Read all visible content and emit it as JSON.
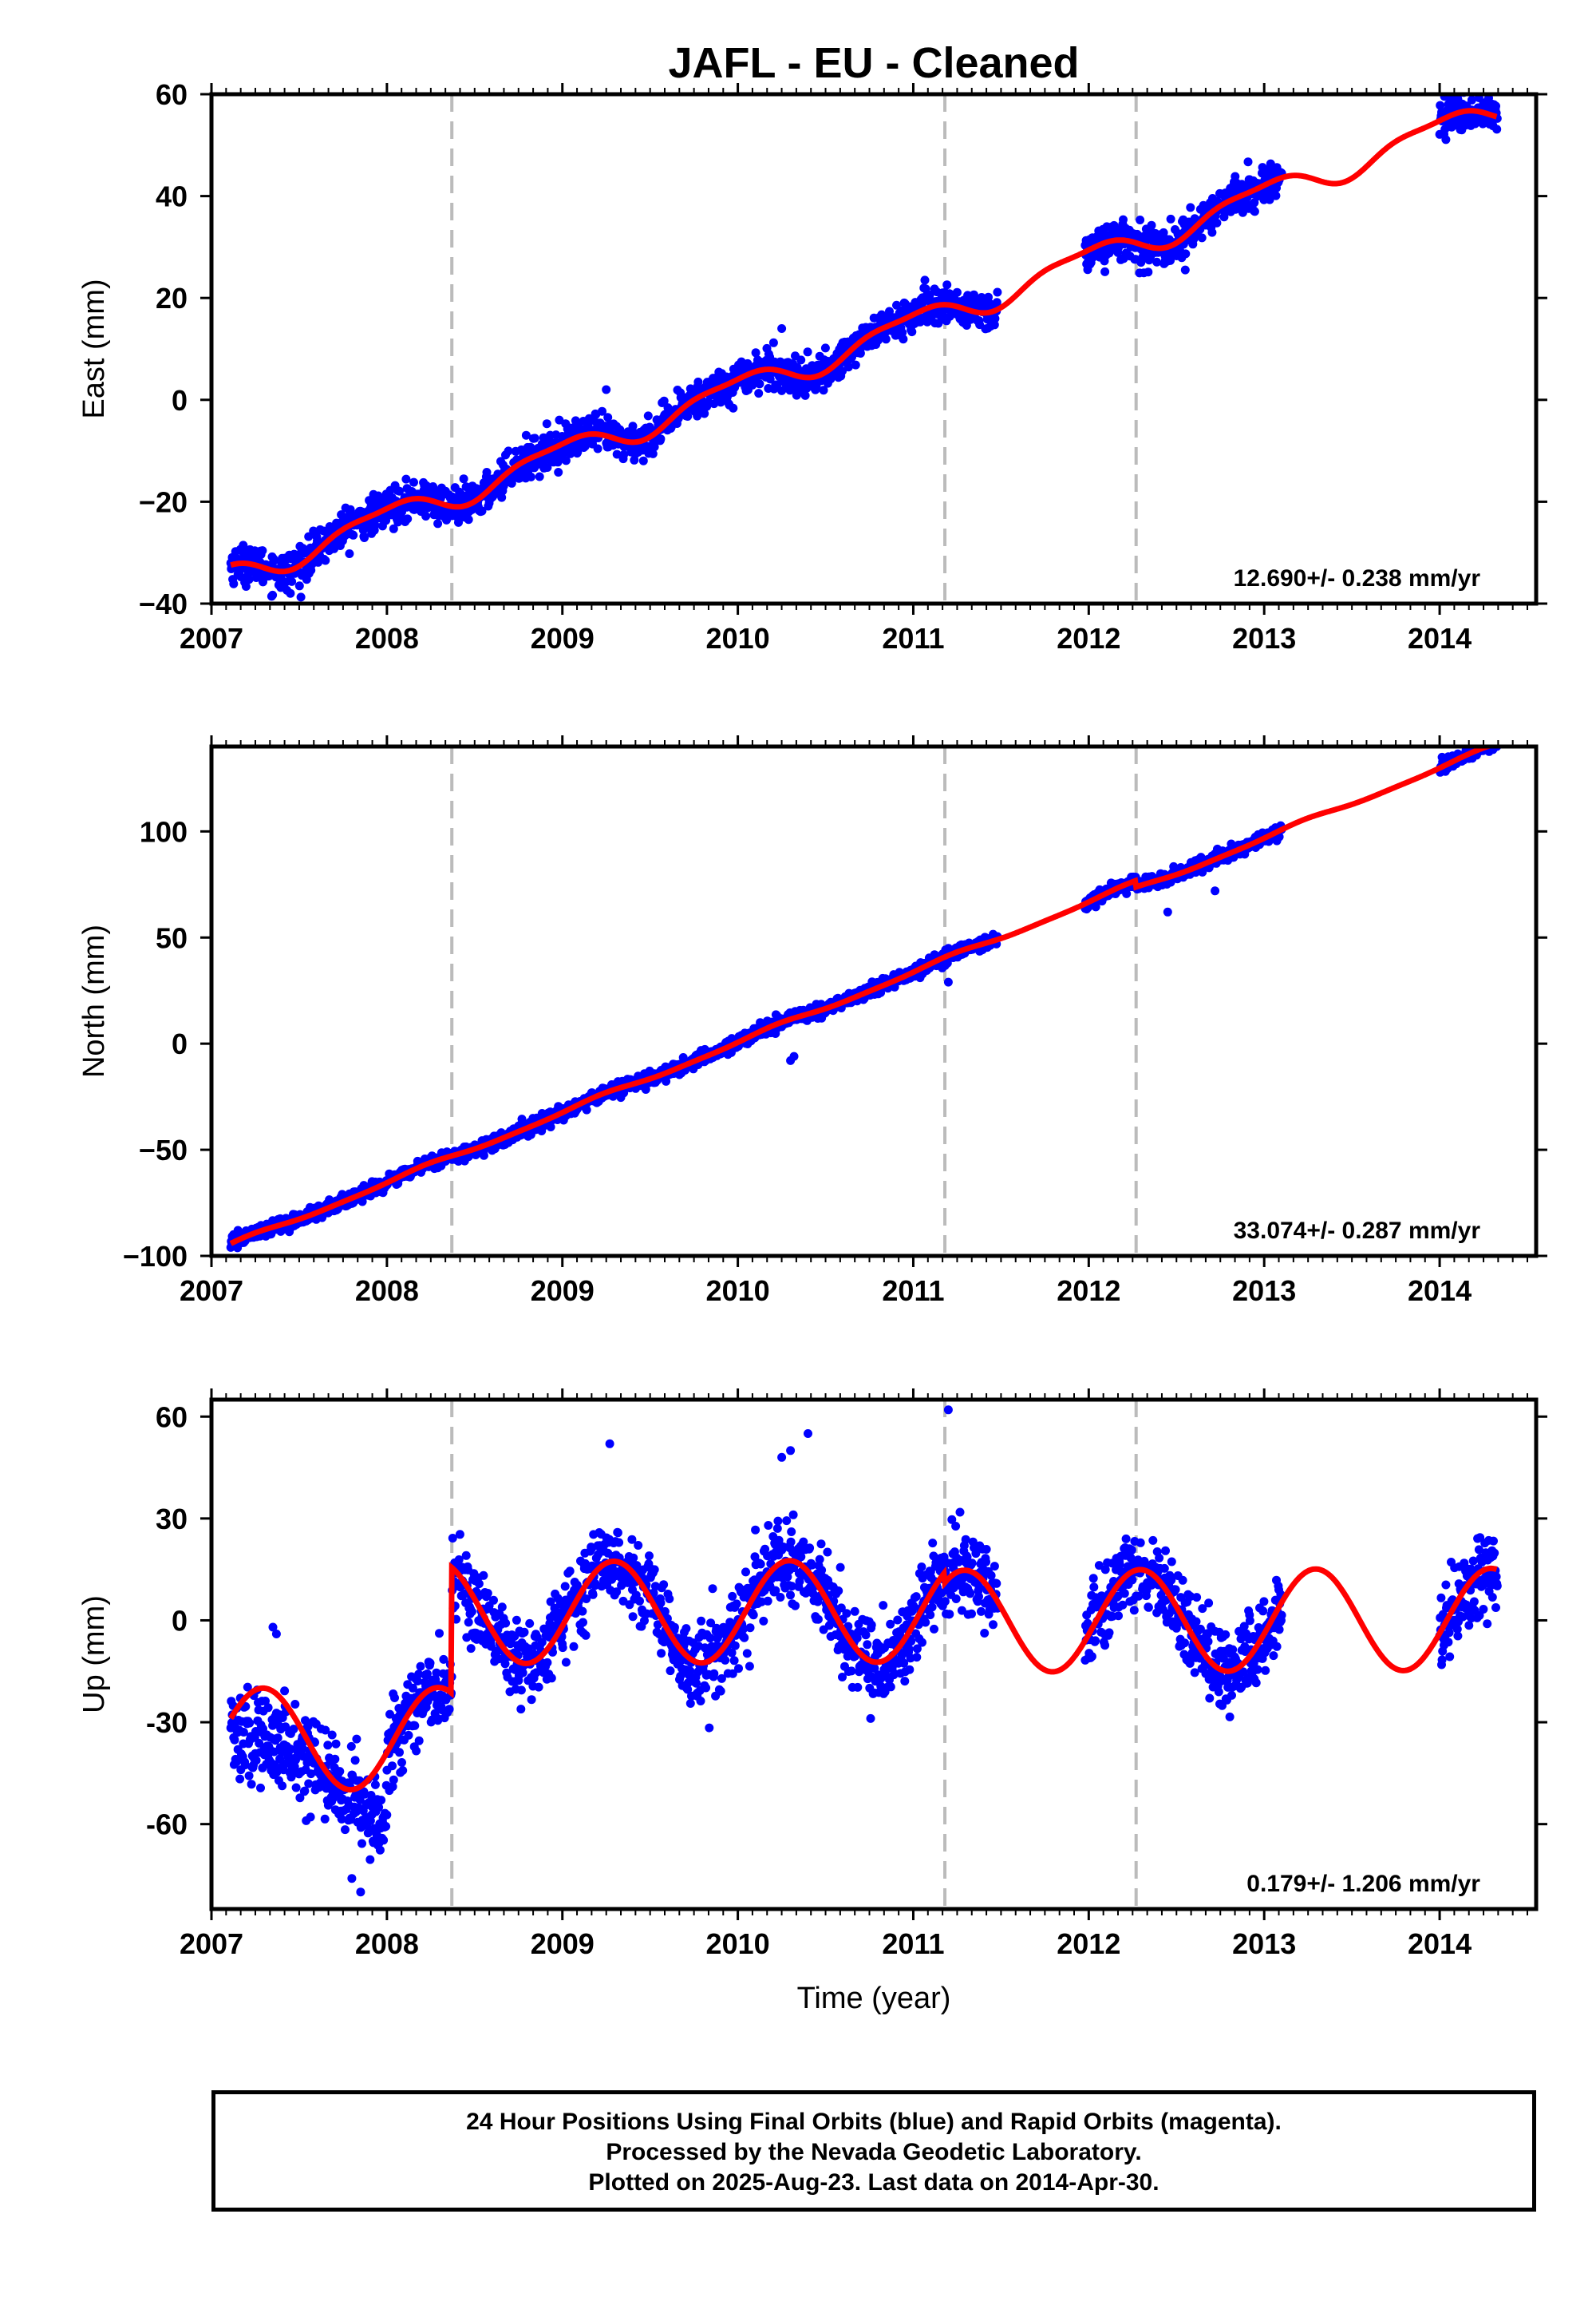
{
  "title": "JAFL  - EU - Cleaned",
  "xlabel": "Time (year)",
  "footer": {
    "line1": "24 Hour Positions Using Final Orbits (blue) and Rapid Orbits (magenta).",
    "line2": "Processed by the Nevada Geodetic Laboratory.",
    "line3": "Plotted on 2025-Aug-23. Last data on 2014-Apr-30."
  },
  "colors": {
    "data": "#0000ff",
    "fit": "#ff0000",
    "break": "#bbbbbb",
    "axis": "#000000"
  },
  "chart_data": [
    {
      "type": "scatter",
      "ylabel": "East (mm)",
      "xlim": [
        2007.0,
        2014.55
      ],
      "ylim": [
        -40,
        60
      ],
      "xticks": [
        2007,
        2008,
        2009,
        2010,
        2011,
        2012,
        2013,
        2014
      ],
      "yticks": [
        -40,
        -20,
        0,
        20,
        40,
        60
      ],
      "ytick_labels": [
        "−40",
        "−20",
        "0",
        "20",
        "40",
        "60"
      ],
      "breaks": [
        2008.37,
        2011.18,
        2012.27
      ],
      "rate": "12.690+/- 0.238 mm/yr",
      "data_segments": [
        [
          2007.11,
          2011.48
        ],
        [
          2011.98,
          2013.1
        ],
        [
          2014.0,
          2014.33
        ]
      ],
      "model": {
        "intercept": -34.5,
        "t0": 2007.11,
        "slope": 12.69,
        "annual_amp": 2.5,
        "annual_phase": 2.4,
        "semi_amp": 0.8,
        "semi_phase": 0.5,
        "offsets": []
      },
      "noise": 1.8,
      "outliers": [
        [
          2009.25,
          2.0
        ],
        [
          2010.25,
          14.0
        ],
        [
          2012.55,
          25.5
        ],
        [
          2007.45,
          -38.0
        ]
      ]
    },
    {
      "type": "scatter",
      "ylabel": "North (mm)",
      "xlim": [
        2007.0,
        2014.55
      ],
      "ylim": [
        -100,
        140
      ],
      "xticks": [
        2007,
        2008,
        2009,
        2010,
        2011,
        2012,
        2013,
        2014
      ],
      "yticks": [
        -100,
        -50,
        0,
        50,
        100
      ],
      "ytick_labels": [
        "−100",
        "−50",
        "0",
        "50",
        "100"
      ],
      "breaks": [
        2008.37,
        2011.18,
        2012.27
      ],
      "rate": "33.074+/- 0.287 mm/yr",
      "data_segments": [
        [
          2007.11,
          2011.48
        ],
        [
          2011.98,
          2013.1
        ],
        [
          2014.0,
          2014.33
        ]
      ],
      "model": {
        "intercept": -95.0,
        "t0": 2007.11,
        "slope": 33.07,
        "annual_amp": 1.0,
        "annual_phase": 1.0,
        "semi_amp": 0.3,
        "semi_phase": 0.0,
        "offsets": [
          [
            2012.27,
            -3.0
          ]
        ]
      },
      "noise": 1.6,
      "outliers": [
        [
          2010.3,
          -8.0
        ],
        [
          2010.32,
          -6.0
        ],
        [
          2011.2,
          29.0
        ],
        [
          2012.45,
          62.0
        ],
        [
          2012.72,
          72.0
        ]
      ]
    },
    {
      "type": "scatter",
      "ylabel": "Up (mm)",
      "xlim": [
        2007.0,
        2014.55
      ],
      "ylim": [
        -85,
        65
      ],
      "xticks": [
        2007,
        2008,
        2009,
        2010,
        2011,
        2012,
        2013,
        2014
      ],
      "yticks": [
        -60,
        -30,
        0,
        30,
        60
      ],
      "ytick_labels": [
        "-60",
        "-30",
        "0",
        "30",
        "60"
      ],
      "breaks": [
        2008.37,
        2011.18,
        2012.27
      ],
      "rate": "0.179+/- 1.206 mm/yr",
      "data_segments": [
        [
          2007.11,
          2008.0
        ],
        [
          2008.0,
          2011.48
        ],
        [
          2011.98,
          2013.1
        ],
        [
          2014.0,
          2014.33
        ]
      ],
      "model": {
        "intercept": -35.0,
        "t0": 2007.11,
        "slope": 0.18,
        "annual_amp": 15.0,
        "annual_phase": 0.42,
        "semi_amp": 0.0,
        "semi_phase": 0.0,
        "offsets": [
          [
            2008.37,
            37.0
          ],
          [
            2011.18,
            -3.0
          ]
        ]
      },
      "noise": 6.0,
      "outliers": [
        [
          2007.35,
          -2.0
        ],
        [
          2007.37,
          -4.0
        ],
        [
          2009.27,
          52.0
        ],
        [
          2010.25,
          48.0
        ],
        [
          2010.3,
          50.0
        ],
        [
          2010.4,
          55.0
        ],
        [
          2011.2,
          62.0
        ],
        [
          2007.85,
          -80.0
        ],
        [
          2007.8,
          -76.0
        ]
      ]
    }
  ]
}
